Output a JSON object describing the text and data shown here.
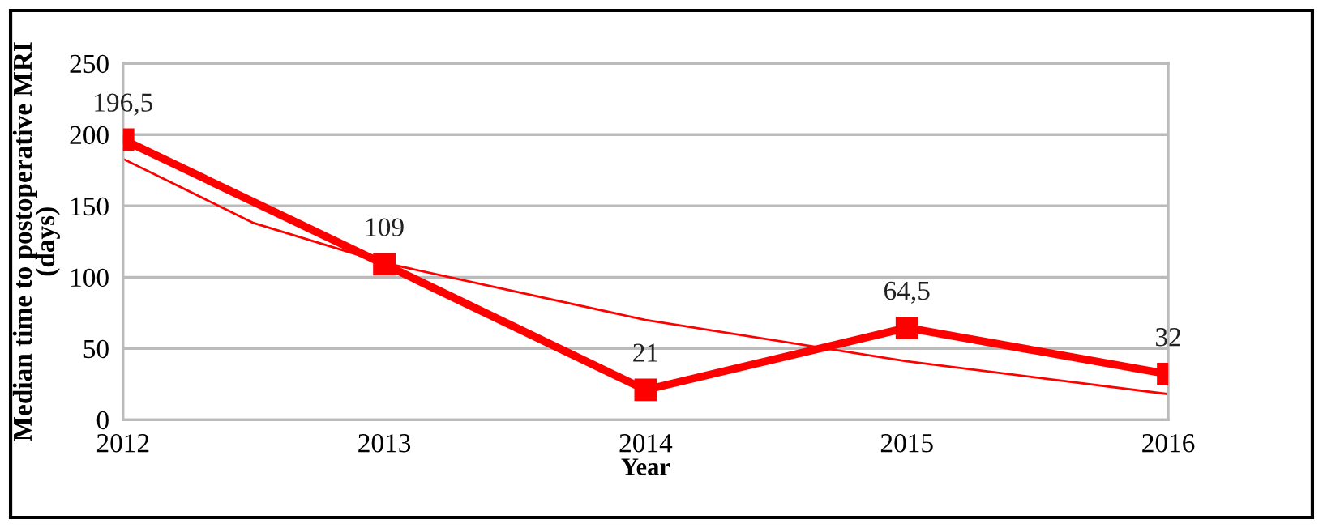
{
  "chart_data": {
    "type": "line",
    "xlabel": "Year",
    "ylabel": "Median time to postoperative MRI\n(days)",
    "x": [
      2012,
      2013,
      2014,
      2015,
      2016
    ],
    "series": [
      {
        "color": "#ff0000",
        "values": [
          196.5,
          109,
          21,
          64.5,
          32
        ],
        "value_labels": [
          "196,5",
          "109",
          "21",
          "64,5",
          "32"
        ],
        "marker": "square"
      },
      {
        "type": "line",
        "color": "#ff0000",
        "x": [
          2012,
          2012.5,
          2013,
          2014,
          2015,
          2016
        ],
        "values": [
          183,
          138,
          110,
          70,
          41,
          18
        ],
        "marker": "none"
      }
    ],
    "xlim": [
      2012,
      2016
    ],
    "xticks": [
      2012,
      2013,
      2014,
      2015,
      2016
    ],
    "ylim": [
      0,
      250
    ],
    "yticks": [
      0,
      50,
      100,
      150,
      200,
      250
    ],
    "grid": "y"
  }
}
